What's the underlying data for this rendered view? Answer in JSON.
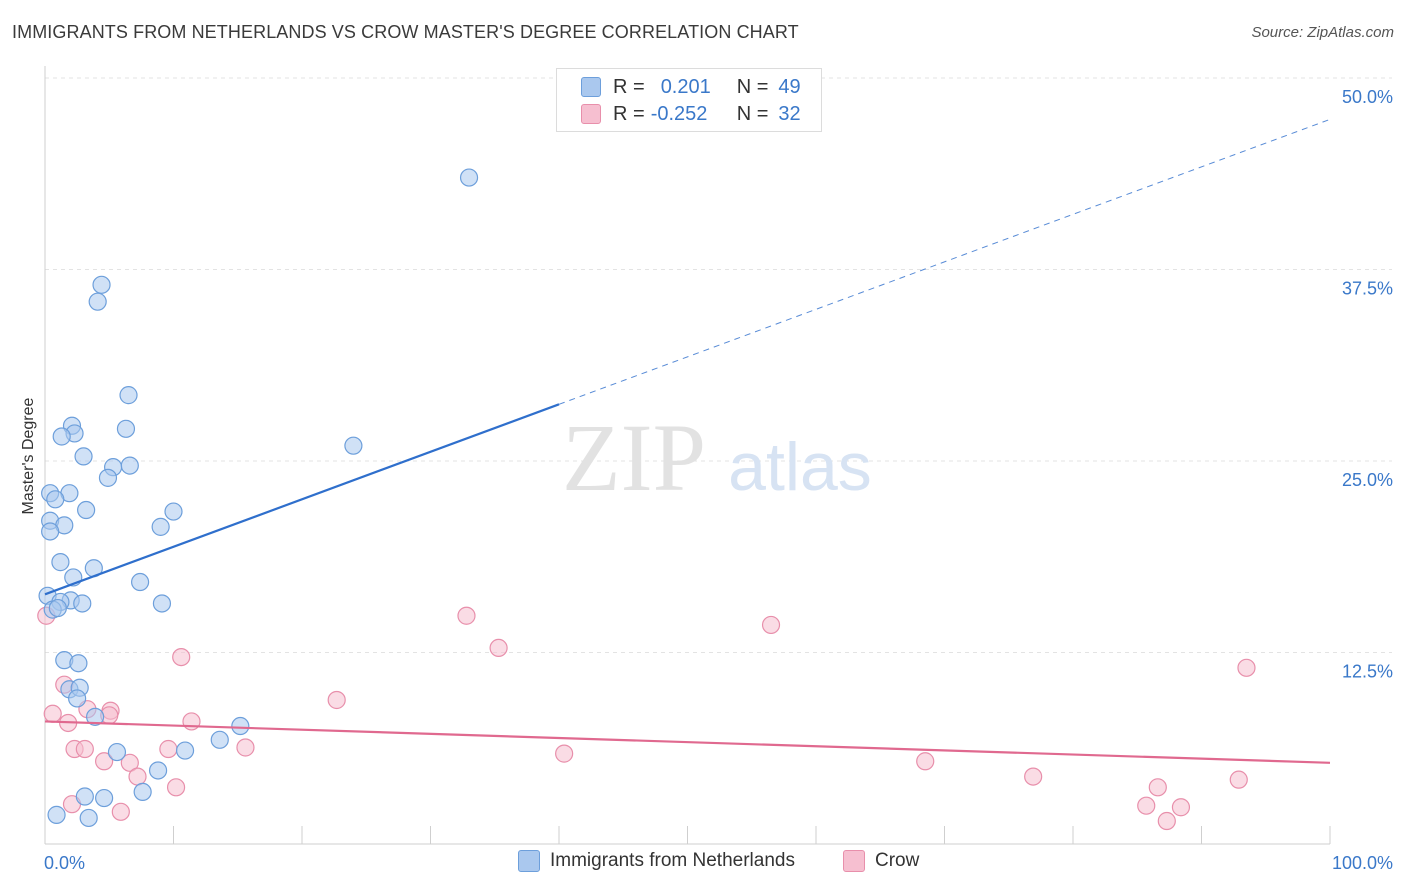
{
  "title": "IMMIGRANTS FROM NETHERLANDS VS CROW MASTER'S DEGREE CORRELATION CHART",
  "source": "Source: ZipAtlas.com",
  "watermark": {
    "zip": "ZIP",
    "atlas": "atlas"
  },
  "legend": {
    "series1": {
      "r_label": "R =",
      "r_value": "0.201",
      "n_label": "N =",
      "n_value": "49"
    },
    "series2": {
      "r_label": "R =",
      "r_value": "-0.252",
      "n_label": "N =",
      "n_value": "32"
    }
  },
  "colors": {
    "blue_fill": "#aac8ee",
    "blue_stroke": "#6d9fdb",
    "blue_line": "#2f6fcc",
    "pink_fill": "#f6bfd0",
    "pink_stroke": "#e88fab",
    "pink_line": "#e0698f",
    "axis_text": "#3a78c9",
    "grid": "#e3e3e3"
  },
  "chart_data": {
    "type": "scatter",
    "title": "IMMIGRANTS FROM NETHERLANDS VS CROW MASTER'S DEGREE CORRELATION CHART",
    "xlabel": "",
    "ylabel": "Master's Degree",
    "xlim": [
      0,
      100
    ],
    "ylim": [
      0,
      50
    ],
    "x_tick_labels": [
      "0.0%",
      "100.0%"
    ],
    "y_ticks": [
      12.5,
      25.0,
      37.5,
      50.0
    ],
    "y_tick_labels": [
      "12.5%",
      "25.0%",
      "37.5%",
      "50.0%"
    ],
    "series": [
      {
        "name": "Immigrants from Netherlands",
        "color": "blue",
        "r": 0.201,
        "n": 49,
        "trend": {
          "x0": 0,
          "y0": 16.3,
          "x1": 40,
          "y1": 28.7,
          "x_end": 100,
          "y_end": 47.3
        },
        "points": [
          [
            33.0,
            43.5
          ],
          [
            4.4,
            36.5
          ],
          [
            4.1,
            35.4
          ],
          [
            6.5,
            29.3
          ],
          [
            6.3,
            27.1
          ],
          [
            2.1,
            27.3
          ],
          [
            2.3,
            26.8
          ],
          [
            1.3,
            26.6
          ],
          [
            24.0,
            26.0
          ],
          [
            3.0,
            25.3
          ],
          [
            5.3,
            24.6
          ],
          [
            6.6,
            24.7
          ],
          [
            4.9,
            23.9
          ],
          [
            0.4,
            22.9
          ],
          [
            1.9,
            22.9
          ],
          [
            0.8,
            22.5
          ],
          [
            3.2,
            21.8
          ],
          [
            10.0,
            21.7
          ],
          [
            0.4,
            21.1
          ],
          [
            1.5,
            20.8
          ],
          [
            9.0,
            20.7
          ],
          [
            0.4,
            20.4
          ],
          [
            1.2,
            18.4
          ],
          [
            3.8,
            18.0
          ],
          [
            2.2,
            17.4
          ],
          [
            7.4,
            17.1
          ],
          [
            0.2,
            16.2
          ],
          [
            2.0,
            15.9
          ],
          [
            1.2,
            15.8
          ],
          [
            2.9,
            15.7
          ],
          [
            9.1,
            15.7
          ],
          [
            0.6,
            15.3
          ],
          [
            1.0,
            15.4
          ],
          [
            1.5,
            12.0
          ],
          [
            2.6,
            11.8
          ],
          [
            1.9,
            10.1
          ],
          [
            2.7,
            10.2
          ],
          [
            2.5,
            9.5
          ],
          [
            3.9,
            8.3
          ],
          [
            15.2,
            7.7
          ],
          [
            13.6,
            6.8
          ],
          [
            5.6,
            6.0
          ],
          [
            10.9,
            6.1
          ],
          [
            8.8,
            4.8
          ],
          [
            7.6,
            3.4
          ],
          [
            3.1,
            3.1
          ],
          [
            4.6,
            3.0
          ],
          [
            3.4,
            1.7
          ],
          [
            0.9,
            1.9
          ]
        ]
      },
      {
        "name": "Crow",
        "color": "pink",
        "r": -0.252,
        "n": 32,
        "trend": {
          "x0": 0,
          "y0": 8.0,
          "x1": 100,
          "y1": 5.3
        },
        "points": [
          [
            0.1,
            14.9
          ],
          [
            32.8,
            14.9
          ],
          [
            56.5,
            14.3
          ],
          [
            35.3,
            12.8
          ],
          [
            10.6,
            12.2
          ],
          [
            93.5,
            11.5
          ],
          [
            1.5,
            10.4
          ],
          [
            22.7,
            9.4
          ],
          [
            3.3,
            8.8
          ],
          [
            5.1,
            8.7
          ],
          [
            0.6,
            8.5
          ],
          [
            5.0,
            8.4
          ],
          [
            11.4,
            8.0
          ],
          [
            1.8,
            7.9
          ],
          [
            2.3,
            6.2
          ],
          [
            3.1,
            6.2
          ],
          [
            9.6,
            6.2
          ],
          [
            15.6,
            6.3
          ],
          [
            40.4,
            5.9
          ],
          [
            4.6,
            5.4
          ],
          [
            6.6,
            5.3
          ],
          [
            68.5,
            5.4
          ],
          [
            7.2,
            4.4
          ],
          [
            76.9,
            4.4
          ],
          [
            10.2,
            3.7
          ],
          [
            86.6,
            3.7
          ],
          [
            92.9,
            4.2
          ],
          [
            2.1,
            2.6
          ],
          [
            5.9,
            2.1
          ],
          [
            85.7,
            2.5
          ],
          [
            88.4,
            2.4
          ],
          [
            87.3,
            1.5
          ]
        ]
      }
    ]
  }
}
